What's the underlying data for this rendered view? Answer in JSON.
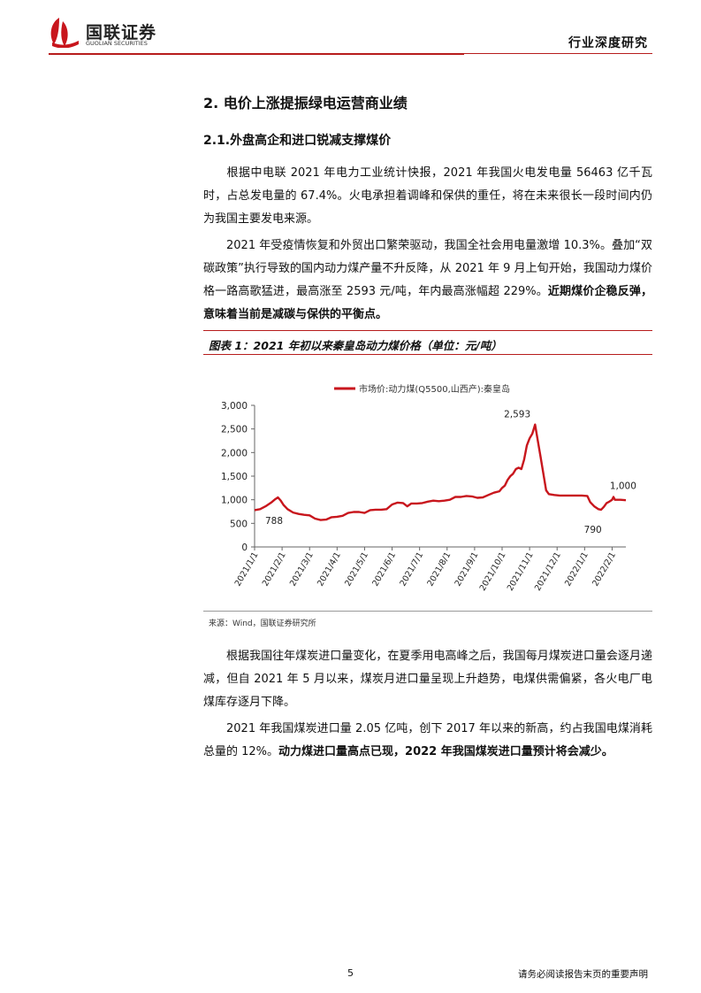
{
  "header": {
    "logo_cn": "国联证券",
    "logo_en": "GUOLIAN SECURITIES",
    "doc_type": "行业深度研究"
  },
  "section_title": "2.  电价上涨提振绿电运营商业绩",
  "subsection_title": "2.1.外盘高企和进口锐减支撑煤价",
  "paragraphs": {
    "p1": "根据中电联 2021 年电力工业统计快报，2021 年我国火电发电量 56463 亿千瓦时，占总发电量的 67.4%。火电承担着调峰和保供的重任，将在未来很长一段时间内仍为我国主要发电来源。",
    "p2_normal": "2021 年受疫情恢复和外贸出口繁荣驱动，我国全社会用电量激增 10.3%。叠加“双碳政策”执行导致的国内动力煤产量不升反降，从 2021 年 9 月上旬开始，我国动力煤价格一路高歌猛进，最高涨至 2593 元/吨，年内最高涨幅超 229%。",
    "p2_bold": "近期煤价企稳反弹，意味着当前是减碳与保供的平衡点。",
    "p3": "根据我国往年煤炭进口量变化，在夏季用电高峰之后，我国每月煤炭进口量会逐月递减，但自 2021 年 5 月以来，煤炭月进口量呈现上升趋势，电煤供需偏紧，各火电厂电煤库存逐月下降。",
    "p4_normal": "2021 年我国煤炭进口量 2.05 亿吨，创下 2017 年以来的新高，约占我国电煤消耗总量的 12%。",
    "p4_bold": "动力煤进口量高点已现，2022 年我国煤炭进口量预计将会减少。"
  },
  "figure": {
    "caption": "图表 1：2021 年初以来秦皇岛动力煤价格（单位：元/吨）",
    "source": "来源：Wind，国联证券研究所"
  },
  "chart_data": {
    "type": "line",
    "legend": "市场价:动力煤(Q5500,山西产):秦皇岛",
    "legend_position": "top",
    "color": "#c8161d",
    "ylim": [
      0,
      3000
    ],
    "yticks": [
      0,
      500,
      1000,
      1500,
      2000,
      2500,
      3000
    ],
    "ytick_labels": [
      "0",
      "500",
      "1,000",
      "1,500",
      "2,000",
      "2,500",
      "3,000"
    ],
    "xtick_labels": [
      "2021/1/1",
      "2021/2/1",
      "2021/3/1",
      "2021/4/1",
      "2021/5/1",
      "2021/6/1",
      "2021/7/1",
      "2021/8/1",
      "2021/9/1",
      "2021/10/1",
      "2021/11/1",
      "2021/12/1",
      "2022/1/1",
      "2022/2/1"
    ],
    "x_end": 13.5,
    "annotations": [
      {
        "label": "788",
        "x": 0.45,
        "y": 788
      },
      {
        "label": "2,593",
        "x": 9.55,
        "y": 2593
      },
      {
        "label": "790",
        "x": 12.3,
        "y": 790
      },
      {
        "label": "1,000",
        "x": 13.4,
        "y": 1000
      }
    ],
    "points": [
      [
        0,
        780
      ],
      [
        0.2,
        800
      ],
      [
        0.4,
        860
      ],
      [
        0.6,
        940
      ],
      [
        0.75,
        1010
      ],
      [
        0.85,
        1050
      ],
      [
        0.95,
        980
      ],
      [
        1.05,
        890
      ],
      [
        1.2,
        800
      ],
      [
        1.4,
        730
      ],
      [
        1.6,
        700
      ],
      [
        1.8,
        680
      ],
      [
        2.0,
        670
      ],
      [
        2.2,
        600
      ],
      [
        2.4,
        570
      ],
      [
        2.6,
        580
      ],
      [
        2.8,
        630
      ],
      [
        3.0,
        640
      ],
      [
        3.2,
        660
      ],
      [
        3.4,
        720
      ],
      [
        3.6,
        740
      ],
      [
        3.8,
        740
      ],
      [
        4.0,
        720
      ],
      [
        4.2,
        780
      ],
      [
        4.4,
        790
      ],
      [
        4.6,
        790
      ],
      [
        4.8,
        800
      ],
      [
        5.0,
        900
      ],
      [
        5.2,
        940
      ],
      [
        5.4,
        930
      ],
      [
        5.55,
        860
      ],
      [
        5.7,
        920
      ],
      [
        5.9,
        920
      ],
      [
        6.1,
        930
      ],
      [
        6.3,
        960
      ],
      [
        6.5,
        980
      ],
      [
        6.7,
        970
      ],
      [
        6.9,
        980
      ],
      [
        7.1,
        1000
      ],
      [
        7.3,
        1060
      ],
      [
        7.5,
        1060
      ],
      [
        7.7,
        1080
      ],
      [
        7.9,
        1070
      ],
      [
        8.1,
        1040
      ],
      [
        8.3,
        1050
      ],
      [
        8.5,
        1100
      ],
      [
        8.7,
        1150
      ],
      [
        8.9,
        1180
      ],
      [
        9.0,
        1250
      ],
      [
        9.1,
        1300
      ],
      [
        9.2,
        1420
      ],
      [
        9.3,
        1500
      ],
      [
        9.4,
        1550
      ],
      [
        9.5,
        1650
      ],
      [
        9.6,
        1680
      ],
      [
        9.7,
        1650
      ],
      [
        9.8,
        1850
      ],
      [
        9.9,
        2150
      ],
      [
        10.0,
        2300
      ],
      [
        10.1,
        2400
      ],
      [
        10.2,
        2593
      ],
      [
        10.3,
        2250
      ],
      [
        10.4,
        1900
      ],
      [
        10.5,
        1550
      ],
      [
        10.6,
        1200
      ],
      [
        10.7,
        1120
      ],
      [
        10.9,
        1100
      ],
      [
        11.1,
        1090
      ],
      [
        11.3,
        1090
      ],
      [
        11.5,
        1090
      ],
      [
        11.7,
        1090
      ],
      [
        11.9,
        1090
      ],
      [
        12.1,
        1080
      ],
      [
        12.2,
        950
      ],
      [
        12.35,
        860
      ],
      [
        12.5,
        800
      ],
      [
        12.6,
        790
      ],
      [
        12.7,
        850
      ],
      [
        12.8,
        930
      ],
      [
        12.9,
        960
      ],
      [
        13.0,
        1000
      ],
      [
        13.05,
        1060
      ],
      [
        13.1,
        1000
      ],
      [
        13.3,
        1000
      ],
      [
        13.5,
        990
      ]
    ]
  },
  "footer": {
    "page_number": "5",
    "notice": "请务必阅读报告末页的重要声明"
  }
}
